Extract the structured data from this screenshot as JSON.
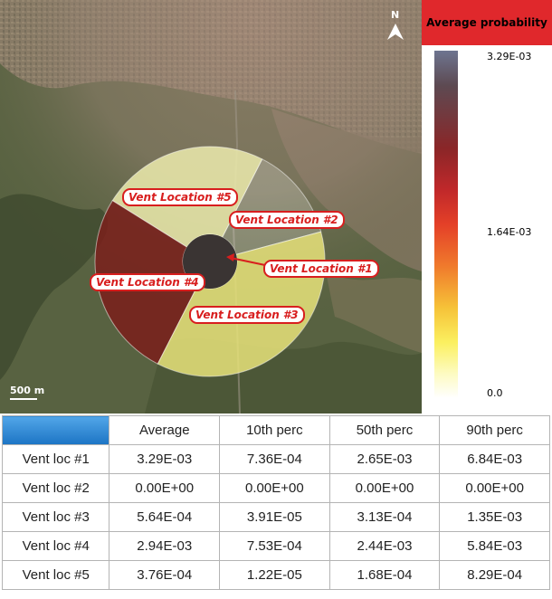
{
  "map": {
    "north_label": "N",
    "scale_label": "500 m",
    "vent_labels": [
      "Vent Location #5",
      "Vent Location #2",
      "Vent Location #1",
      "Vent Location #4",
      "Vent Location #3"
    ],
    "sector_colors": {
      "vent1": "#3a3433",
      "vent2": "#eeefe8",
      "vent3": "#e8e37a",
      "vent4": "#7a1f1b",
      "vent5": "#ecebad"
    }
  },
  "legend": {
    "title": "Average probability",
    "max_label": "3.29E-03",
    "mid_label": "1.64E-03",
    "min_label": "0.0",
    "title_color": "#e0282c"
  },
  "table": {
    "headers": [
      "Average",
      "10th perc",
      "50th perc",
      "90th perc"
    ],
    "rows": [
      {
        "label": "Vent loc #1",
        "values": [
          "3.29E-03",
          "7.36E-04",
          "2.65E-03",
          "6.84E-03"
        ]
      },
      {
        "label": "Vent loc #2",
        "values": [
          "0.00E+00",
          "0.00E+00",
          "0.00E+00",
          "0.00E+00"
        ]
      },
      {
        "label": "Vent loc #3",
        "values": [
          "5.64E-04",
          "3.91E-05",
          "3.13E-04",
          "1.35E-03"
        ]
      },
      {
        "label": "Vent loc #4",
        "values": [
          "2.94E-03",
          "7.53E-04",
          "2.44E-03",
          "5.84E-03"
        ]
      },
      {
        "label": "Vent loc #5",
        "values": [
          "3.76E-04",
          "1.22E-05",
          "1.68E-04",
          "8.29E-04"
        ]
      }
    ]
  }
}
